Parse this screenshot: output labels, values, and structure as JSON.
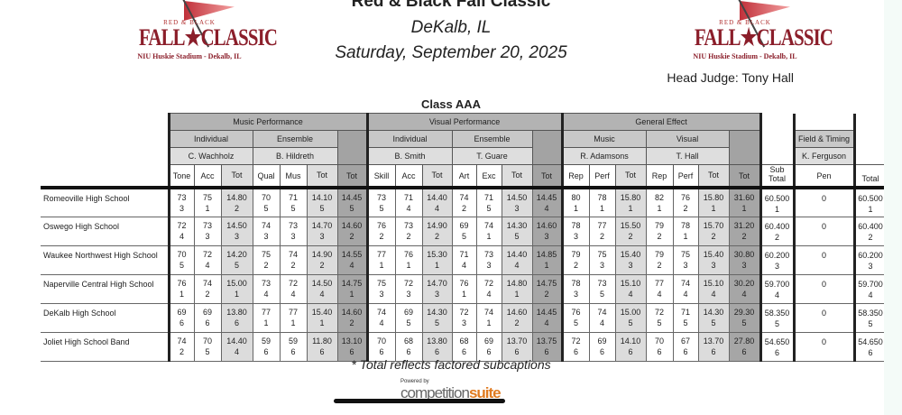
{
  "header": {
    "title": "Red & Black Fall Classic",
    "location": "DeKalb, IL",
    "date": "Saturday, September 20, 2025",
    "head_judge": "Head Judge: Tony Hall",
    "class_name": "Class AAA"
  },
  "logo": {
    "top": "RED & BLACK",
    "main": "FALL★CLASSIC",
    "sub": "NIU Huskie Stadium - Dekalb, IL"
  },
  "table": {
    "captions": {
      "music": "Music Performance",
      "visual": "Visual Performance",
      "ge": "General Effect",
      "ft": "Field & Timing"
    },
    "subcaptions": {
      "mp_ind": "Individual",
      "mp_ens": "Ensemble",
      "vp_ind": "Individual",
      "vp_ens": "Ensemble",
      "ge_music": "Music",
      "ge_visual": "Visual"
    },
    "judges": {
      "mp_ind": "C. Wachholz",
      "mp_ens": "B. Hildreth",
      "vp_ind": "B. Smith",
      "vp_ens": "T. Guare",
      "ge_music": "R. Adamsons",
      "ge_visual": "T. Hall",
      "ft": "K. Ferguson"
    },
    "columns": [
      "Tone",
      "Acc",
      "Tot",
      "Qual",
      "Mus",
      "Tot",
      "Tot",
      "Skill",
      "Acc",
      "Tot",
      "Art",
      "Exc",
      "Tot",
      "Tot",
      "Rep",
      "Perf",
      "Tot",
      "Rep",
      "Perf",
      "Tot",
      "Tot",
      "Sub Total",
      "Pen",
      "Total"
    ],
    "rows": [
      {
        "name": "Romeoville High School",
        "cells": [
          [
            "73",
            "3"
          ],
          [
            "75",
            "1"
          ],
          [
            "14.80",
            "2"
          ],
          [
            "70",
            "5"
          ],
          [
            "71",
            "5"
          ],
          [
            "14.10",
            "5"
          ],
          [
            "14.45",
            "5"
          ],
          [
            "73",
            "5"
          ],
          [
            "71",
            "4"
          ],
          [
            "14.40",
            "4"
          ],
          [
            "74",
            "2"
          ],
          [
            "71",
            "5"
          ],
          [
            "14.50",
            "3"
          ],
          [
            "14.45",
            "4"
          ],
          [
            "80",
            "1"
          ],
          [
            "78",
            "1"
          ],
          [
            "15.80",
            "1"
          ],
          [
            "82",
            "1"
          ],
          [
            "76",
            "2"
          ],
          [
            "15.80",
            "1"
          ],
          [
            "31.60",
            "1"
          ],
          [
            "60.500",
            "1"
          ],
          [
            "0",
            ""
          ],
          [
            "60.500",
            "1"
          ]
        ]
      },
      {
        "name": "Oswego High School",
        "cells": [
          [
            "72",
            "4"
          ],
          [
            "73",
            "3"
          ],
          [
            "14.50",
            "3"
          ],
          [
            "74",
            "3"
          ],
          [
            "73",
            "3"
          ],
          [
            "14.70",
            "3"
          ],
          [
            "14.60",
            "2"
          ],
          [
            "76",
            "2"
          ],
          [
            "73",
            "2"
          ],
          [
            "14.90",
            "2"
          ],
          [
            "69",
            "5"
          ],
          [
            "74",
            "1"
          ],
          [
            "14.30",
            "5"
          ],
          [
            "14.60",
            "3"
          ],
          [
            "78",
            "3"
          ],
          [
            "77",
            "2"
          ],
          [
            "15.50",
            "2"
          ],
          [
            "79",
            "2"
          ],
          [
            "78",
            "1"
          ],
          [
            "15.70",
            "2"
          ],
          [
            "31.20",
            "2"
          ],
          [
            "60.400",
            "2"
          ],
          [
            "0",
            ""
          ],
          [
            "60.400",
            "2"
          ]
        ]
      },
      {
        "name": "Waukee Northwest High School",
        "cells": [
          [
            "70",
            "5"
          ],
          [
            "72",
            "4"
          ],
          [
            "14.20",
            "5"
          ],
          [
            "75",
            "2"
          ],
          [
            "74",
            "2"
          ],
          [
            "14.90",
            "2"
          ],
          [
            "14.55",
            "4"
          ],
          [
            "77",
            "1"
          ],
          [
            "76",
            "1"
          ],
          [
            "15.30",
            "1"
          ],
          [
            "71",
            "4"
          ],
          [
            "73",
            "3"
          ],
          [
            "14.40",
            "4"
          ],
          [
            "14.85",
            "1"
          ],
          [
            "79",
            "2"
          ],
          [
            "75",
            "3"
          ],
          [
            "15.40",
            "3"
          ],
          [
            "79",
            "2"
          ],
          [
            "75",
            "3"
          ],
          [
            "15.40",
            "3"
          ],
          [
            "30.80",
            "3"
          ],
          [
            "60.200",
            "3"
          ],
          [
            "0",
            ""
          ],
          [
            "60.200",
            "3"
          ]
        ]
      },
      {
        "name": "Naperville Central High School",
        "cells": [
          [
            "76",
            "1"
          ],
          [
            "74",
            "2"
          ],
          [
            "15.00",
            "1"
          ],
          [
            "73",
            "4"
          ],
          [
            "72",
            "4"
          ],
          [
            "14.50",
            "4"
          ],
          [
            "14.75",
            "1"
          ],
          [
            "75",
            "3"
          ],
          [
            "72",
            "3"
          ],
          [
            "14.70",
            "3"
          ],
          [
            "76",
            "1"
          ],
          [
            "72",
            "4"
          ],
          [
            "14.80",
            "1"
          ],
          [
            "14.75",
            "2"
          ],
          [
            "78",
            "3"
          ],
          [
            "73",
            "5"
          ],
          [
            "15.10",
            "4"
          ],
          [
            "77",
            "4"
          ],
          [
            "74",
            "4"
          ],
          [
            "15.10",
            "4"
          ],
          [
            "30.20",
            "4"
          ],
          [
            "59.700",
            "4"
          ],
          [
            "0",
            ""
          ],
          [
            "59.700",
            "4"
          ]
        ]
      },
      {
        "name": "DeKalb High School",
        "cells": [
          [
            "69",
            "6"
          ],
          [
            "69",
            "6"
          ],
          [
            "13.80",
            "6"
          ],
          [
            "77",
            "1"
          ],
          [
            "77",
            "1"
          ],
          [
            "15.40",
            "1"
          ],
          [
            "14.60",
            "2"
          ],
          [
            "74",
            "4"
          ],
          [
            "69",
            "5"
          ],
          [
            "14.30",
            "5"
          ],
          [
            "72",
            "3"
          ],
          [
            "74",
            "1"
          ],
          [
            "14.60",
            "2"
          ],
          [
            "14.45",
            "4"
          ],
          [
            "76",
            "5"
          ],
          [
            "74",
            "4"
          ],
          [
            "15.00",
            "5"
          ],
          [
            "72",
            "5"
          ],
          [
            "71",
            "5"
          ],
          [
            "14.30",
            "5"
          ],
          [
            "29.30",
            "5"
          ],
          [
            "58.350",
            "5"
          ],
          [
            "0",
            ""
          ],
          [
            "58.350",
            "5"
          ]
        ]
      },
      {
        "name": "Joliet High School Band",
        "cells": [
          [
            "74",
            "2"
          ],
          [
            "70",
            "5"
          ],
          [
            "14.40",
            "4"
          ],
          [
            "59",
            "6"
          ],
          [
            "59",
            "6"
          ],
          [
            "11.80",
            "6"
          ],
          [
            "13.10",
            "6"
          ],
          [
            "70",
            "6"
          ],
          [
            "68",
            "6"
          ],
          [
            "13.80",
            "6"
          ],
          [
            "68",
            "6"
          ],
          [
            "69",
            "6"
          ],
          [
            "13.70",
            "6"
          ],
          [
            "13.75",
            "6"
          ],
          [
            "72",
            "6"
          ],
          [
            "69",
            "6"
          ],
          [
            "14.10",
            "6"
          ],
          [
            "70",
            "6"
          ],
          [
            "67",
            "6"
          ],
          [
            "13.70",
            "6"
          ],
          [
            "27.80",
            "6"
          ],
          [
            "54.650",
            "6"
          ],
          [
            "0",
            ""
          ],
          [
            "54.650",
            "6"
          ]
        ]
      }
    ]
  },
  "footer": {
    "note": "* Total reflects factored subcaptions",
    "powered_by": "Powered by",
    "brand_a": "competition",
    "brand_b": "suite"
  }
}
